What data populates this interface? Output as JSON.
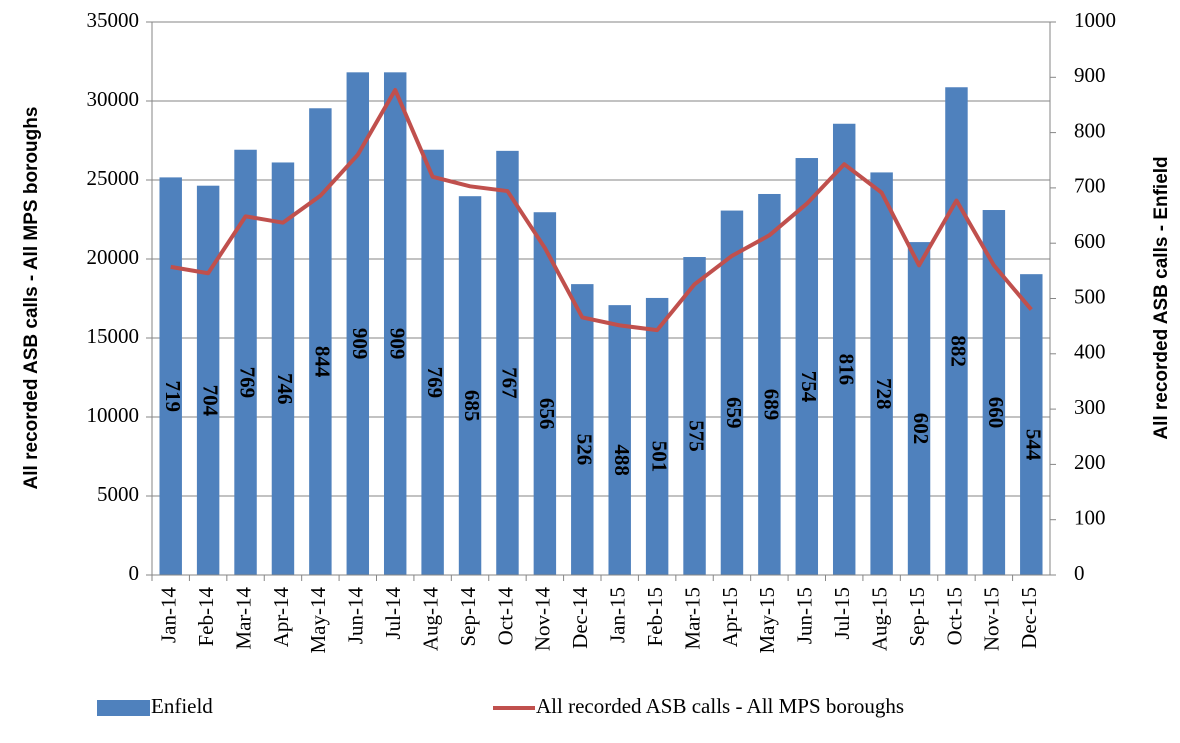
{
  "chart_data": {
    "type": "bar-line",
    "y_label": "All recorded ASB calls - All MPS boroughs",
    "y2_label": "All recorded ASB calls - Enfield",
    "categories": [
      "Jan-14",
      "Feb-14",
      "Mar-14",
      "Apr-14",
      "May-14",
      "Jun-14",
      "Jul-14",
      "Aug-14",
      "Sep-14",
      "Oct-14",
      "Nov-14",
      "Dec-14",
      "Jan-15",
      "Feb-15",
      "Mar-15",
      "Apr-15",
      "May-15",
      "Jun-15",
      "Jul-15",
      "Aug-15",
      "Sep-15",
      "Oct-15",
      "Nov-15",
      "Dec-15"
    ],
    "series": [
      {
        "name": "Enfield",
        "type": "bar",
        "axis": "y2",
        "color": "#4f81bd",
        "values": [
          719,
          704,
          769,
          746,
          844,
          909,
          909,
          769,
          685,
          767,
          656,
          526,
          488,
          501,
          575,
          659,
          689,
          754,
          816,
          728,
          602,
          882,
          660,
          544
        ]
      },
      {
        "name": "All recorded ASB calls - All MPS boroughs",
        "type": "line",
        "axis": "y",
        "color": "#c0504d",
        "values": [
          19500,
          19100,
          22700,
          22300,
          24000,
          26600,
          30700,
          25200,
          24600,
          24300,
          20700,
          16300,
          15800,
          15500,
          18400,
          20200,
          21500,
          23500,
          26000,
          24200,
          19600,
          23700,
          19600,
          16800
        ]
      }
    ],
    "ylim": [
      0,
      35000
    ],
    "yticks": [
      0,
      5000,
      10000,
      15000,
      20000,
      25000,
      30000,
      35000
    ],
    "y2lim": [
      0,
      1000
    ],
    "y2ticks": [
      0,
      100,
      200,
      300,
      400,
      500,
      600,
      700,
      800,
      900,
      1000
    ],
    "grid": true,
    "legend": "bottom"
  }
}
